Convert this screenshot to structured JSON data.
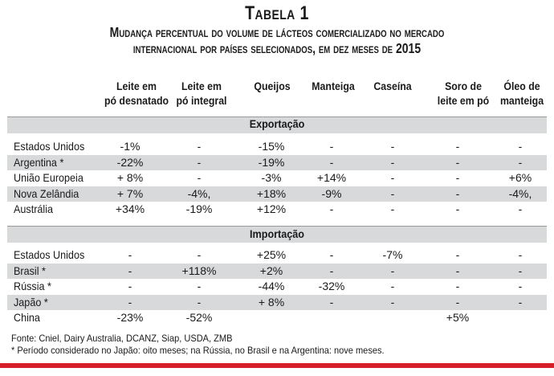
{
  "title": "Tabela 1",
  "subtitle_line1": "Mudança percentual do volume de lácteos comercializado no mercado",
  "subtitle_line2": "internacional por países selecionados, em dez meses de",
  "subtitle_year": "2015",
  "columns": [
    [
      "Leite em",
      "pó desnatado"
    ],
    [
      "Leite em",
      "pó integral"
    ],
    [
      "Queijos",
      ""
    ],
    [
      "Manteiga",
      ""
    ],
    [
      "Caseína",
      ""
    ],
    [
      "Soro de",
      "leite em pó"
    ],
    [
      "Óleo de",
      "manteiga"
    ]
  ],
  "sections": [
    {
      "label": "Exportação",
      "rows": [
        {
          "country": "Estados Unidos",
          "values": [
            "-1%",
            "-",
            "-15%",
            "-",
            "-",
            "-",
            "-"
          ]
        },
        {
          "country": "Argentina *",
          "values": [
            "-22%",
            "-",
            "-19%",
            "-",
            "-",
            "-",
            "-"
          ]
        },
        {
          "country": "União Europeia",
          "values": [
            "+ 8%",
            "-",
            "-3%",
            "+14%",
            "-",
            "-",
            "+6%"
          ]
        },
        {
          "country": "Nova Zelândia",
          "values": [
            "+ 7%",
            "-4%,",
            "+18%",
            "-9%",
            "-",
            "-",
            "-4%,"
          ]
        },
        {
          "country": "Austrália",
          "values": [
            "+34%",
            "-19%",
            "+12%",
            "-",
            "-",
            "-",
            "-"
          ]
        }
      ]
    },
    {
      "label": "Importação",
      "rows": [
        {
          "country": "Estados Unidos",
          "values": [
            "-",
            "-",
            "+25%",
            "-",
            "-7%",
            "-",
            "-"
          ]
        },
        {
          "country": "Brasil *",
          "values": [
            "-",
            "+118%",
            "+2%",
            "-",
            "-",
            "-",
            "-"
          ]
        },
        {
          "country": "Rússia *",
          "values": [
            "-",
            "-",
            "-44%",
            "-32%",
            "-",
            "-",
            "-"
          ]
        },
        {
          "country": "Japão *",
          "values": [
            "-",
            "-",
            "+ 8%",
            "-",
            "-",
            "-",
            "-"
          ]
        },
        {
          "country": "China",
          "values": [
            "-23%",
            "-52%",
            "",
            "",
            "",
            "+5%",
            ""
          ]
        }
      ]
    }
  ],
  "source_note": "Fonte: Cniel, Dairy Australia, DCANZ, Siap, USDA, ZMB",
  "footnote": "* Período considerado no Japão: oito meses; na Rússia, no Brasil e na Argentina: nove meses.",
  "colors": {
    "band": "#d8d9db",
    "accent_red": "#d71f2a",
    "text": "#1a1a1a"
  }
}
